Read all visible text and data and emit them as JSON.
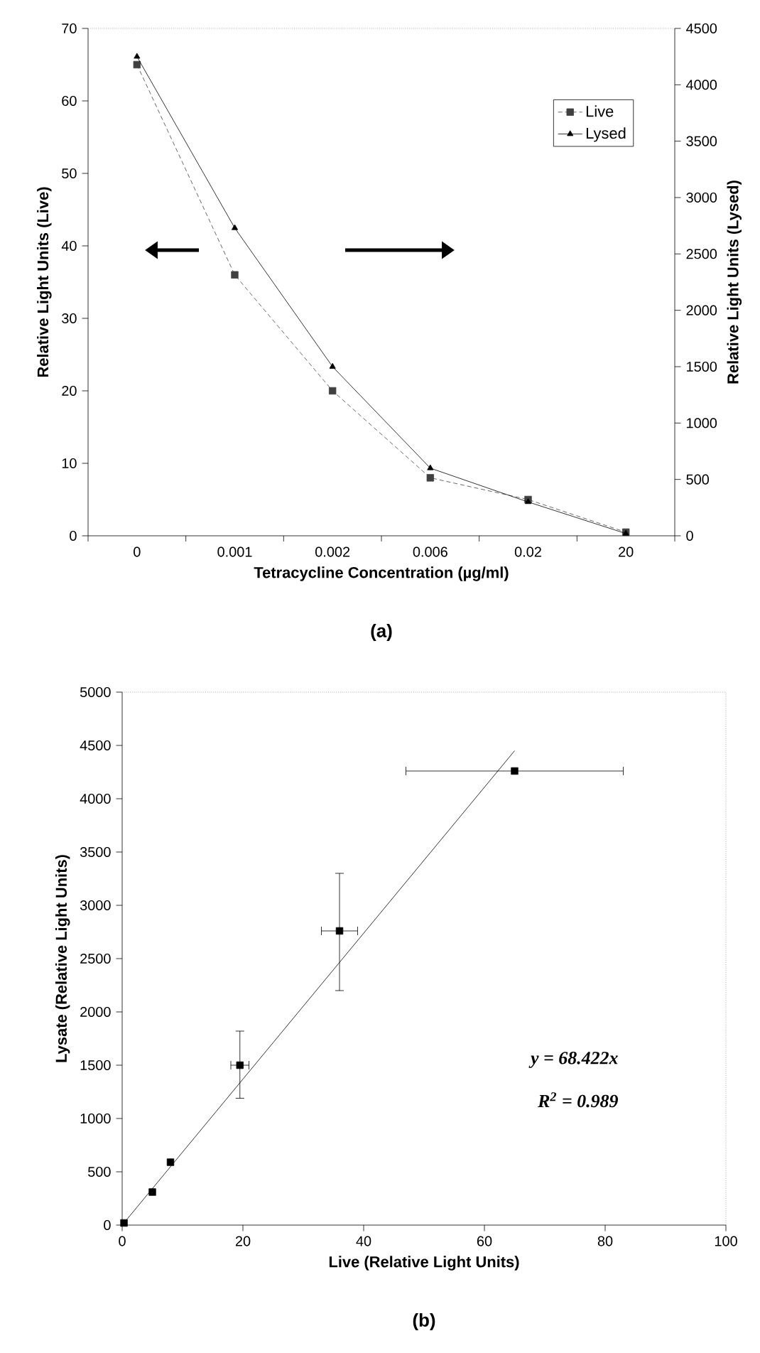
{
  "chart_data": [
    {
      "type": "line",
      "categories": [
        "0",
        "0.001",
        "0.002",
        "0.006",
        "0.02",
        "20"
      ],
      "xlabel": "Tetracycline Concentration (µg/ml)",
      "ylabel": "Relative Light Units (Live)",
      "y2label": "Relative Light Units (Lysed)",
      "ylim": [
        0,
        70
      ],
      "yticks": [
        0,
        10,
        20,
        30,
        40,
        50,
        60,
        70
      ],
      "y2lim": [
        0,
        4500
      ],
      "y2ticks": [
        0,
        500,
        1000,
        1500,
        2000,
        2500,
        3000,
        3500,
        4000,
        4500
      ],
      "legend": "top right",
      "grid": false,
      "series": [
        {
          "name": "Live",
          "color": "#404040",
          "values": [
            65,
            36,
            20,
            8,
            5,
            0.5
          ],
          "marker": "square",
          "line_style": "dashed"
        },
        {
          "name": "Lysed",
          "color": "#000000",
          "values": [
            4250,
            2730,
            1500,
            600,
            300,
            20
          ],
          "axis": "y2",
          "marker": "triangle",
          "line_style": "solid"
        }
      ],
      "annotations": [
        "(a)"
      ]
    },
    {
      "type": "scatter",
      "xlabel": "Live (Relative Light Units)",
      "ylabel": "Lysate (Relative Light Units)",
      "xlim": [
        0,
        100
      ],
      "xticks": [
        0,
        20,
        40,
        60,
        80,
        100
      ],
      "ylim": [
        0,
        5000
      ],
      "yticks": [
        0,
        500,
        1000,
        1500,
        2000,
        2500,
        3000,
        3500,
        4000,
        4500,
        5000
      ],
      "legend": false,
      "grid": false,
      "series": [
        {
          "color": "#000000",
          "x": [
            0.3,
            5,
            8,
            19.5,
            36,
            65
          ],
          "values": [
            20,
            310,
            590,
            1500,
            2760,
            4260
          ],
          "marker": "square",
          "errors": [
            null,
            null,
            null,
            [
              1190,
              1820
            ],
            [
              2200,
              3300
            ],
            null
          ],
          "xerrors": [
            null,
            null,
            null,
            [
              18,
              21
            ],
            [
              33,
              39
            ],
            [
              47,
              83
            ]
          ]
        },
        {
          "type": "line",
          "color": "#000000",
          "x": [
            0,
            65
          ],
          "values": [
            0,
            4450
          ],
          "marker": "none",
          "line_style": "solid"
        }
      ],
      "annotations": [
        "y = 68.422x",
        "R$^{2}$ = 0.989",
        "(b)"
      ]
    }
  ]
}
